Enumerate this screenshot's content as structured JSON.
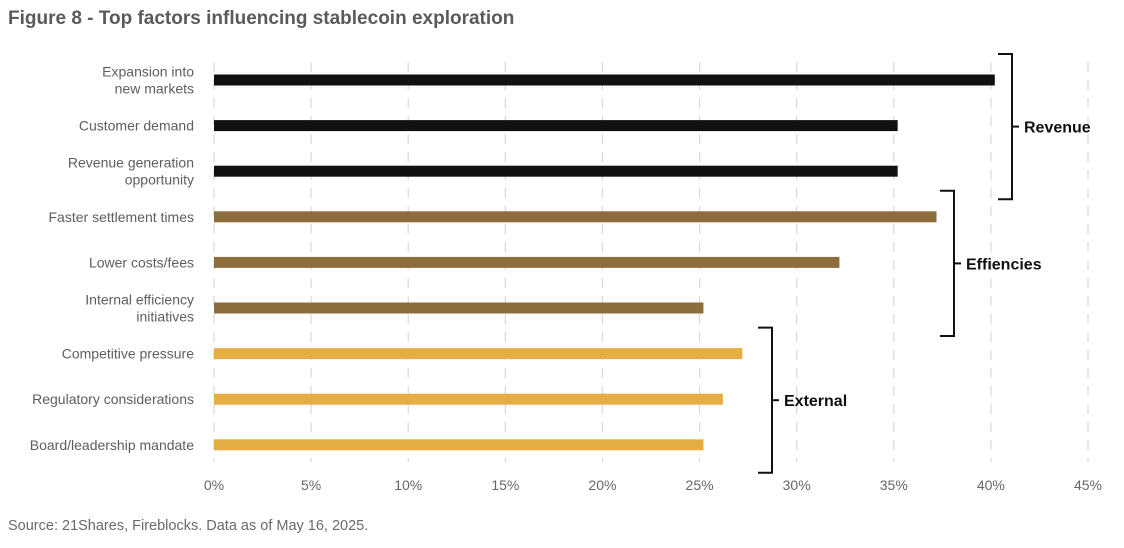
{
  "title": "Figure 8 - Top factors influencing stablecoin exploration",
  "source": "Source: 21Shares, Fireblocks. Data as of May 16, 2025.",
  "colors": {
    "revenue": "#111111",
    "efficiencies": "#8e6d3c",
    "external": "#e6ad45",
    "grid": "#d9d9d9",
    "bracket": "#111111"
  },
  "chart_data": {
    "type": "bar",
    "orientation": "horizontal",
    "categories": [
      [
        "Expansion into",
        "new markets"
      ],
      [
        "Customer demand"
      ],
      [
        "Revenue generation",
        "opportunity"
      ],
      [
        "Faster settlement times"
      ],
      [
        "Lower costs/fees"
      ],
      [
        "Internal efficiency",
        "initiatives"
      ],
      [
        "Competitive pressure"
      ],
      [
        "Regulatory considerations"
      ],
      [
        "Board/leadership mandate"
      ]
    ],
    "values": [
      40.2,
      35.2,
      35.2,
      37.2,
      32.2,
      25.2,
      27.2,
      26.2,
      25.2
    ],
    "groups": [
      {
        "name": "Revenue",
        "indices": [
          0,
          1,
          2
        ],
        "color_key": "revenue"
      },
      {
        "name": "Effiencies",
        "indices": [
          3,
          4,
          5
        ],
        "color_key": "efficiencies"
      },
      {
        "name": "External",
        "indices": [
          6,
          7,
          8
        ],
        "color_key": "external"
      }
    ],
    "xlim": [
      0,
      45
    ],
    "xticks": [
      0,
      5,
      10,
      15,
      20,
      25,
      30,
      35,
      40,
      45
    ],
    "tick_suffix": "%",
    "grid": "vertical dashed",
    "xlabel": "",
    "ylabel": ""
  }
}
